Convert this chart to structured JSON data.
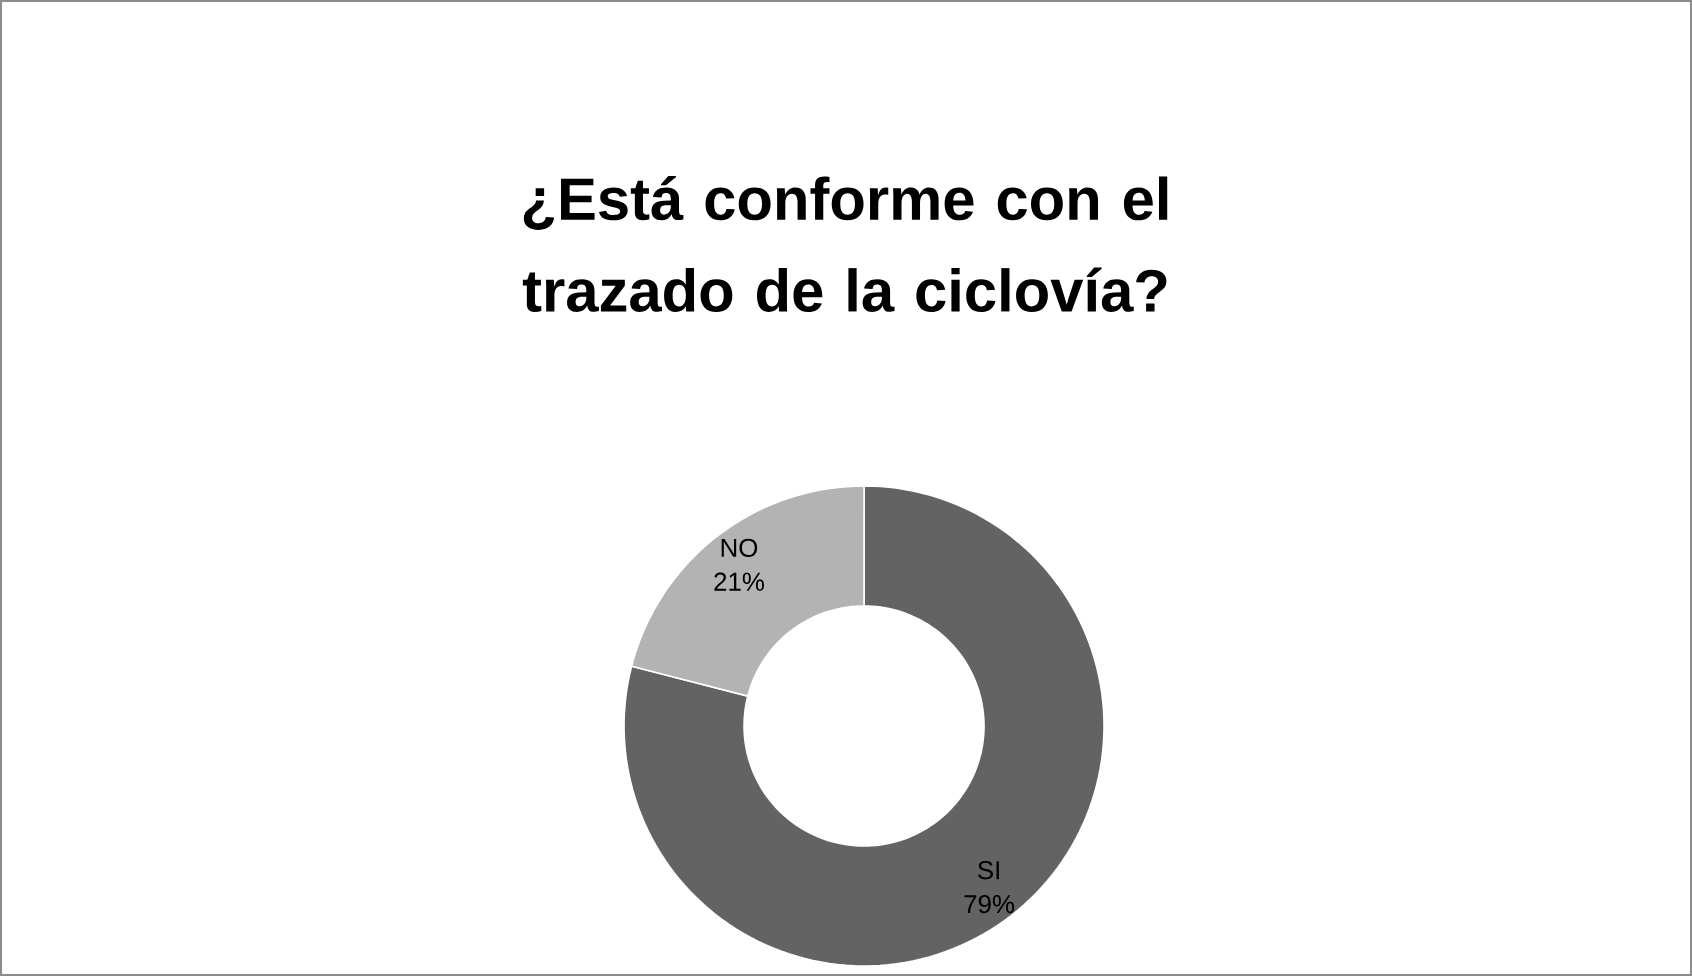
{
  "chart_data": {
    "type": "donut",
    "title": "¿Está conforme con el trazado de la ciclovía?",
    "categories": [
      "SI",
      "NO"
    ],
    "values": [
      79,
      21
    ],
    "value_labels": [
      "79%",
      "21%"
    ],
    "colors": [
      "#636363",
      "#b3b3b3"
    ],
    "data_labels": true
  }
}
